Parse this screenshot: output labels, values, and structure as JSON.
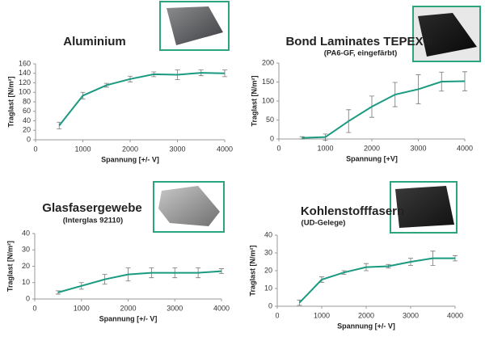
{
  "chart_data": [
    {
      "type": "line",
      "title": "Aluminium",
      "xlabel": "Spannung [+/- V]",
      "ylabel": "Traglast [N/m²]",
      "x": [
        500,
        1000,
        1500,
        2000,
        2500,
        3000,
        3500,
        4000
      ],
      "values": [
        30,
        93,
        115,
        128,
        138,
        137,
        141,
        140
      ],
      "errors": [
        7,
        7,
        4,
        6,
        5,
        10,
        6,
        7
      ],
      "color": "#1a9a80",
      "xlim": [
        0,
        4000
      ],
      "xticks": [
        0,
        1000,
        2000,
        3000,
        4000
      ],
      "ylim": [
        0,
        160
      ],
      "yticks": [
        0,
        20,
        40,
        60,
        80,
        100,
        120,
        140,
        160
      ]
    },
    {
      "type": "line",
      "title": "Bond Laminates TEPEX®",
      "subtitle": "(PA6-GF, eingefärbt)",
      "xlabel": "Spannung [+V]",
      "ylabel": "Traglast [N/m²]",
      "x": [
        500,
        1000,
        1500,
        2000,
        2500,
        3000,
        3500,
        4000
      ],
      "values": [
        3,
        5,
        47,
        85,
        117,
        131,
        151,
        152
      ],
      "errors": [
        3,
        8,
        30,
        28,
        32,
        38,
        25,
        25
      ],
      "color": "#1a9a80",
      "xlim": [
        0,
        4000
      ],
      "xticks": [
        0,
        1000,
        2000,
        3000,
        4000
      ],
      "ylim": [
        0,
        200
      ],
      "yticks": [
        0,
        50,
        100,
        150,
        200
      ]
    },
    {
      "type": "line",
      "title": "Glasfasergewebe",
      "subtitle": "(Interglas 92110)",
      "xlabel": "Spannung [+/- V]",
      "ylabel": "Traglast [N/m²]",
      "x": [
        500,
        1000,
        1500,
        2000,
        2500,
        3000,
        3500,
        4000
      ],
      "values": [
        4,
        8,
        12,
        15,
        16,
        16,
        16,
        17
      ],
      "errors": [
        1,
        2,
        3,
        4,
        3,
        3,
        3,
        1.5
      ],
      "color": "#1a9a80",
      "xlim": [
        0,
        4000
      ],
      "xticks": [
        0,
        1000,
        2000,
        3000,
        4000
      ],
      "ylim": [
        0,
        40
      ],
      "yticks": [
        0,
        10,
        20,
        30,
        40
      ]
    },
    {
      "type": "line",
      "title": "Kohlenstofffasern",
      "subtitle": "(UD-Gelege)",
      "xlabel": "Spannung [+/- V]",
      "ylabel": "Traglast [N/m²]",
      "x": [
        500,
        1000,
        1500,
        2000,
        2500,
        3000,
        3500,
        4000
      ],
      "values": [
        2,
        15,
        19,
        22,
        22.5,
        25,
        27,
        27
      ],
      "errors": [
        1.5,
        1.5,
        1,
        2,
        1,
        2,
        4,
        1.5
      ],
      "color": "#1a9a80",
      "xlim": [
        0,
        4000
      ],
      "xticks": [
        0,
        1000,
        2000,
        3000,
        4000
      ],
      "ylim": [
        0,
        40
      ],
      "yticks": [
        0,
        10,
        20,
        30,
        40
      ]
    }
  ]
}
